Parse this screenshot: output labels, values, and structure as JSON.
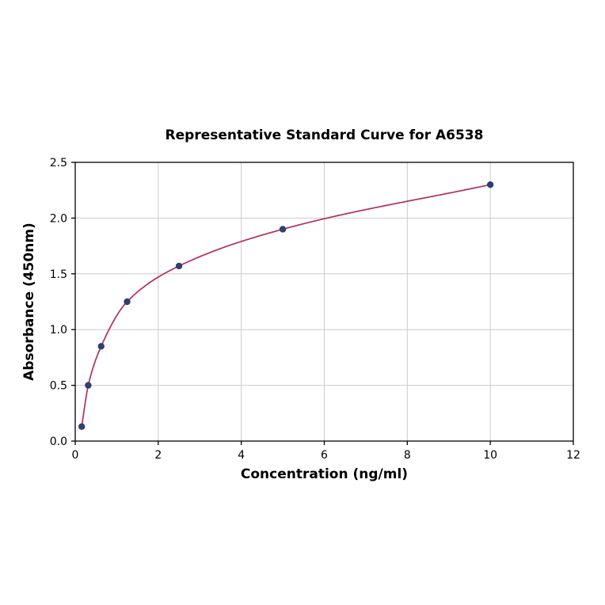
{
  "chart_data": {
    "type": "scatter",
    "title": "Representative Standard Curve for A6538",
    "xlabel": "Concentration (ng/ml)",
    "ylabel": "Absorbance (450nm)",
    "x": [
      0.156,
      0.313,
      0.625,
      1.25,
      2.5,
      5,
      10
    ],
    "y": [
      0.13,
      0.5,
      0.85,
      1.25,
      1.57,
      1.9,
      2.3
    ],
    "fit_curve": "smooth monotone curve through all data points, from first point to last point",
    "xlim": [
      0,
      12
    ],
    "ylim": [
      0,
      2.5
    ],
    "xticks": [
      0,
      2,
      4,
      6,
      8,
      10,
      12
    ],
    "xtick_labels": [
      "0",
      "2",
      "4",
      "6",
      "8",
      "10",
      "12"
    ],
    "yticks": [
      0,
      0.5,
      1,
      1.5,
      2,
      2.5
    ],
    "ytick_labels": [
      "0.0",
      "0.5",
      "1.0",
      "1.5",
      "2.0",
      "2.5"
    ],
    "grid": true,
    "legend": null,
    "colors": {
      "curve": "#b03060",
      "points": "#30406d",
      "grid": "#cccccc",
      "axis": "#000000",
      "background": "#ffffff"
    }
  }
}
